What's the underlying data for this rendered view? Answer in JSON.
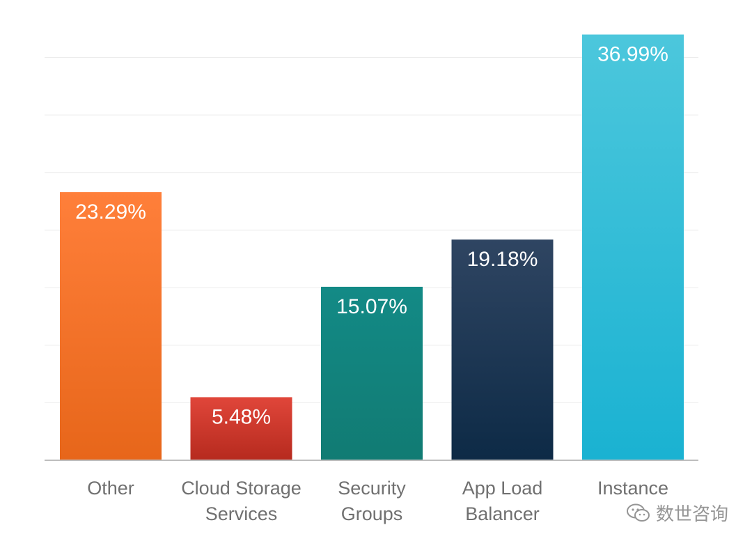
{
  "chart_data": {
    "type": "bar",
    "title": "",
    "xlabel": "",
    "ylabel": "",
    "ylim": [
      0,
      40
    ],
    "grid": true,
    "categories": [
      [
        "Other"
      ],
      [
        "Cloud Storage",
        "Services"
      ],
      [
        "Security",
        "Groups"
      ],
      [
        "App Load",
        "Balancer"
      ],
      [
        "Instance"
      ]
    ],
    "values": [
      23.29,
      5.48,
      15.07,
      19.18,
      36.99
    ],
    "value_labels": [
      "23.29%",
      "5.48%",
      "15.07%",
      "19.18%",
      "36.99%"
    ],
    "bar_colors": [
      [
        "#ff7f3a",
        "#e7661a"
      ],
      [
        "#e0463a",
        "#b62a1e"
      ],
      [
        "#138a86",
        "#117b73"
      ],
      [
        "#2f4562",
        "#0d2a46"
      ],
      [
        "#4cc7dc",
        "#1ab2d2"
      ]
    ],
    "watermark": "数世咨询"
  }
}
